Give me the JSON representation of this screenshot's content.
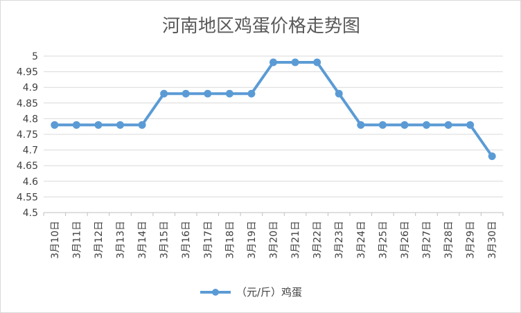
{
  "chart_data": {
    "type": "line",
    "title": "河南地区鸡蛋价格走势图",
    "xlabel": "",
    "ylabel": "",
    "categories": [
      "3月10日",
      "3月11日",
      "3月12日",
      "3月13日",
      "3月14日",
      "3月15日",
      "3月16日",
      "3月17日",
      "3月18日",
      "3月19日",
      "3月20日",
      "3月21日",
      "3月22日",
      "3月23日",
      "3月24日",
      "3月25日",
      "3月26日",
      "3月27日",
      "3月28日",
      "3月29日",
      "3月30日"
    ],
    "series": [
      {
        "name": "（元/斤）鸡蛋",
        "values": [
          4.78,
          4.78,
          4.78,
          4.78,
          4.78,
          4.88,
          4.88,
          4.88,
          4.88,
          4.88,
          4.98,
          4.98,
          4.98,
          4.88,
          4.78,
          4.78,
          4.78,
          4.78,
          4.78,
          4.78,
          4.68
        ],
        "color": "#5b9bd5"
      }
    ],
    "yticks": [
      "4.5",
      "4.55",
      "4.6",
      "4.65",
      "4.7",
      "4.75",
      "4.8",
      "4.85",
      "4.9",
      "4.95",
      "5"
    ],
    "ylim": [
      4.5,
      5
    ],
    "grid": true,
    "legend": "bottom"
  }
}
